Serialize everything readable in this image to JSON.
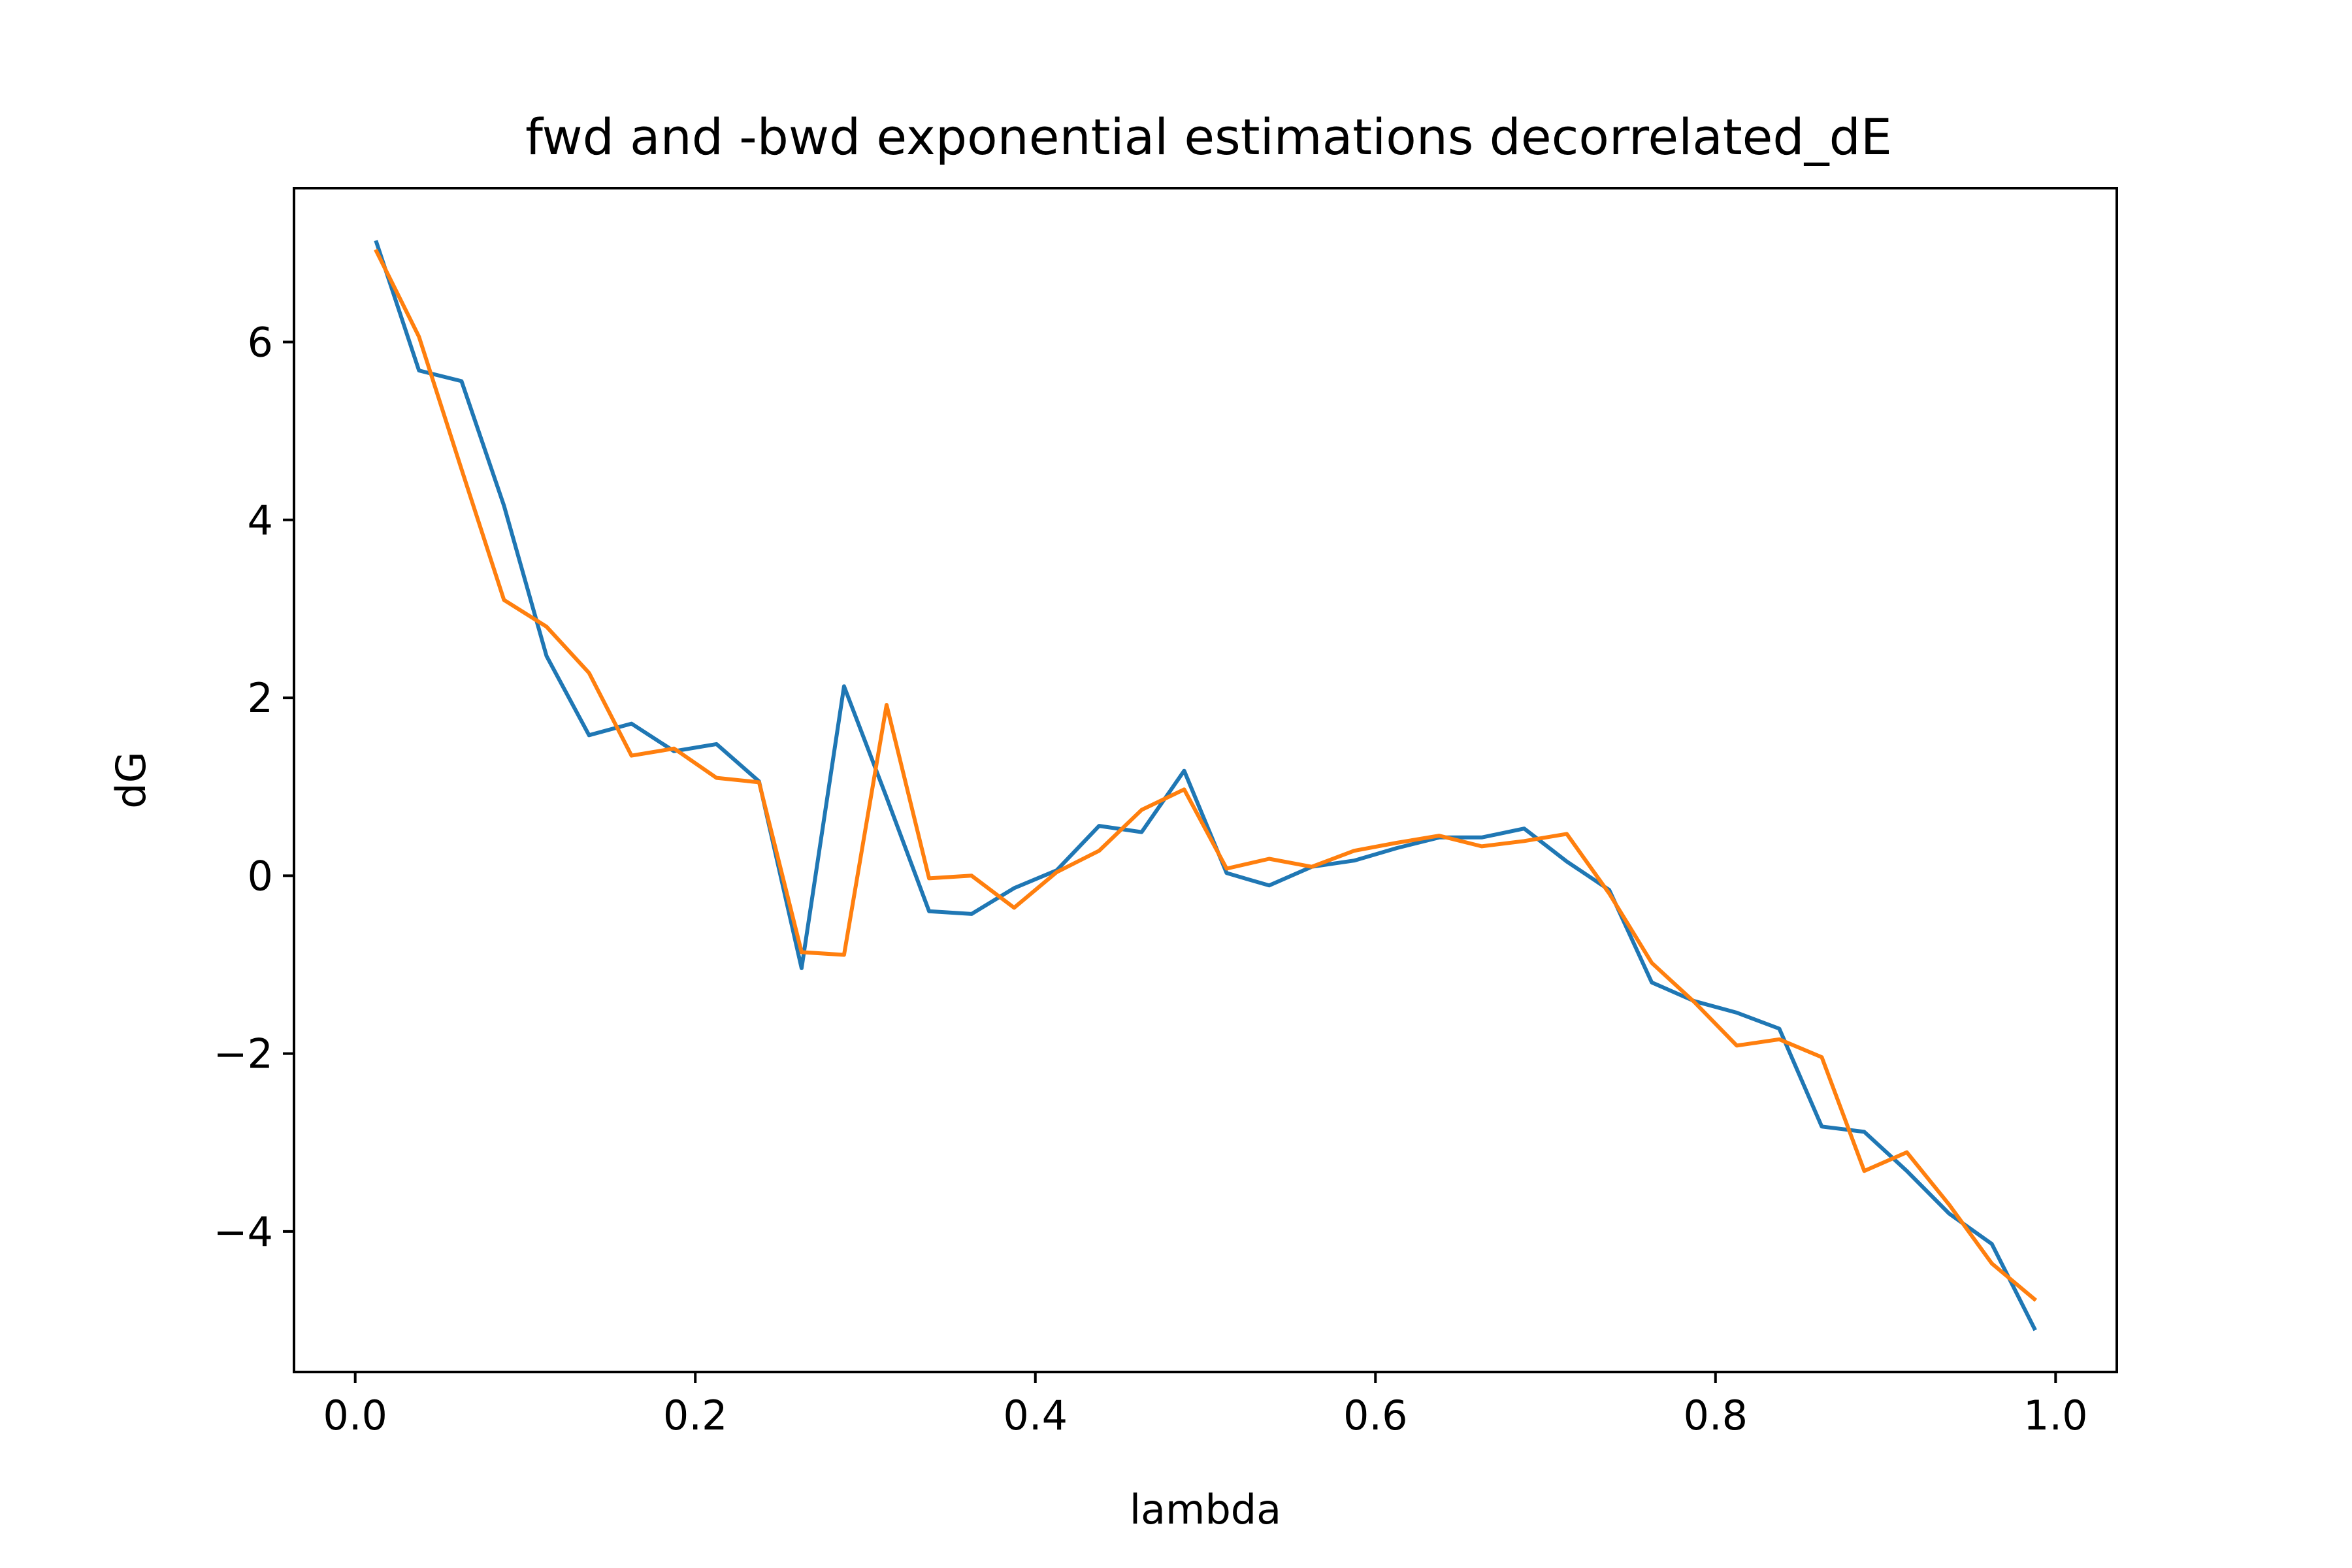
{
  "chart_data": {
    "type": "line",
    "title": "fwd and -bwd exponential estimations decorrelated_dE",
    "xlabel": "lambda",
    "ylabel": "dG",
    "xlim": [
      -0.036,
      1.036
    ],
    "ylim": [
      -5.58,
      7.73
    ],
    "xticks": [
      0.0,
      0.2,
      0.4,
      0.6,
      0.8,
      1.0
    ],
    "xtick_labels": [
      "0.0",
      "0.2",
      "0.4",
      "0.6",
      "0.8",
      "1.0"
    ],
    "yticks": [
      -4,
      -2,
      0,
      2,
      4,
      6
    ],
    "ytick_labels": [
      "−4",
      "−2",
      "0",
      "2",
      "4",
      "6"
    ],
    "grid": false,
    "legend": "none",
    "x": [
      0.0125,
      0.0375,
      0.0625,
      0.0875,
      0.1125,
      0.1375,
      0.1625,
      0.1875,
      0.2125,
      0.2375,
      0.2625,
      0.2875,
      0.3125,
      0.3375,
      0.3625,
      0.3875,
      0.4125,
      0.4375,
      0.4625,
      0.4875,
      0.5125,
      0.5375,
      0.5625,
      0.5875,
      0.6125,
      0.6375,
      0.6625,
      0.6875,
      0.7125,
      0.7375,
      0.7625,
      0.7875,
      0.8125,
      0.8375,
      0.8625,
      0.8875,
      0.9125,
      0.9375,
      0.9625,
      0.9875
    ],
    "series": [
      {
        "color": "#1f77b4",
        "values": [
          7.12,
          5.68,
          5.56,
          4.16,
          2.47,
          1.58,
          1.71,
          1.4,
          1.48,
          1.06,
          -1.04,
          2.13,
          0.88,
          -0.4,
          -0.43,
          -0.14,
          0.06,
          0.56,
          0.49,
          1.18,
          0.03,
          -0.11,
          0.1,
          0.17,
          0.31,
          0.43,
          0.43,
          0.53,
          0.16,
          -0.16,
          -1.2,
          -1.41,
          -1.54,
          -1.72,
          -2.82,
          -2.88,
          -3.32,
          -3.8,
          -4.14,
          -5.09
        ]
      },
      {
        "color": "#ff7f0e",
        "values": [
          7.02,
          6.06,
          4.57,
          3.1,
          2.8,
          2.28,
          1.35,
          1.43,
          1.1,
          1.05,
          -0.86,
          -0.89,
          1.92,
          -0.03,
          0.0,
          -0.36,
          0.04,
          0.28,
          0.74,
          0.97,
          0.08,
          0.19,
          0.1,
          0.28,
          0.37,
          0.45,
          0.33,
          0.39,
          0.47,
          -0.2,
          -0.98,
          -1.42,
          -1.91,
          -1.84,
          -2.04,
          -3.32,
          -3.11,
          -3.7,
          -4.36,
          -4.76
        ]
      }
    ]
  }
}
